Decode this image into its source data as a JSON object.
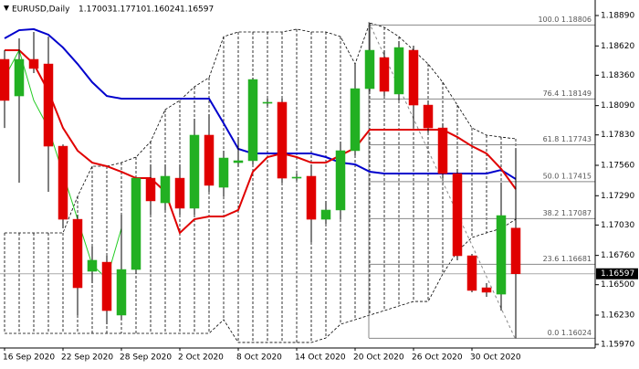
{
  "chart_data": {
    "type": "candlestick",
    "title": "EURUSD,Daily",
    "quote": [
      "1.17003",
      "1.17710",
      "1.16024",
      "1.16597"
    ],
    "categories": [
      "16 Sep 2020",
      null,
      null,
      null,
      "22 Sep 2020",
      null,
      null,
      null,
      "28 Sep 2020",
      null,
      null,
      null,
      "2 Oct 2020",
      null,
      null,
      null,
      "8 Oct 2020",
      null,
      null,
      null,
      "14 Oct 2020",
      null,
      null,
      null,
      "20 Oct 2020",
      null,
      null,
      null,
      "26 Oct 2020",
      null,
      null,
      null,
      "30 Oct 2020",
      null,
      null,
      null
    ],
    "up_color": "#22b022",
    "down_color": "#e00000",
    "open": [
      1.18501,
      1.18176,
      1.18501,
      1.1846,
      1.1773,
      1.17081,
      1.16619,
      1.167,
      1.1623,
      1.16635,
      1.17446,
      1.17227,
      1.17446,
      1.17179,
      1.17828,
      1.17365,
      1.17584,
      1.17601,
      1.18111,
      1.1812,
      1.17446,
      1.17463,
      1.17081,
      1.17163,
      1.1769,
      1.18241,
      1.18517,
      1.18193,
      1.18582,
      1.18095,
      1.17892,
      1.17487,
      1.16757,
      1.16473,
      1.16416,
      1.17003
    ],
    "high": [
      1.18582,
      1.18687,
      1.18744,
      1.18703,
      1.17746,
      1.17122,
      1.16838,
      1.16757,
      1.17122,
      1.17446,
      1.17568,
      1.17568,
      1.17568,
      1.17974,
      1.18014,
      1.1769,
      1.17811,
      1.18339,
      1.18152,
      1.18152,
      1.17487,
      1.17568,
      1.17244,
      1.17771,
      1.1846,
      1.18825,
      1.18582,
      1.18663,
      1.18622,
      1.18136,
      1.17933,
      1.17528,
      1.16773,
      1.16514,
      1.17406,
      1.1771
    ],
    "low": [
      1.17892,
      1.17406,
      1.18379,
      1.17325,
      1.17,
      1.1623,
      1.16514,
      1.16149,
      1.16189,
      1.16595,
      1.17122,
      1.17163,
      1.17122,
      1.17122,
      1.17325,
      1.17284,
      1.17552,
      1.17568,
      1.18087,
      1.17406,
      1.17422,
      1.16879,
      1.17041,
      1.17081,
      1.17649,
      1.18217,
      1.18176,
      1.18136,
      1.17892,
      1.17852,
      1.17446,
      1.16717,
      1.16433,
      1.16392,
      1.1627,
      1.16024
    ],
    "close": [
      1.18136,
      1.18501,
      1.1842,
      1.1773,
      1.17081,
      1.16473,
      1.16717,
      1.1627,
      1.16635,
      1.17446,
      1.17244,
      1.17463,
      1.17179,
      1.17828,
      1.17382,
      1.17625,
      1.17601,
      1.18322,
      1.1812,
      1.17446,
      1.17455,
      1.17081,
      1.17163,
      1.1769,
      1.18241,
      1.18582,
      1.18217,
      1.18606,
      1.18095,
      1.17892,
      1.17487,
      1.16757,
      1.16449,
      1.16433,
      1.17114,
      1.16597
    ],
    "lines": [
      {
        "color": "#0000cc",
        "width": 2,
        "dash": false,
        "values": [
          1.18687,
          1.1876,
          1.18769,
          1.1872,
          1.18606,
          1.1846,
          1.18298,
          1.18176,
          1.18152,
          1.18152,
          1.18152,
          1.18152,
          1.18152,
          1.18152,
          1.18152,
          1.17933,
          1.17706,
          1.17665,
          1.17665,
          1.17665,
          1.17665,
          1.17665,
          1.17633,
          1.17584,
          1.17568,
          1.17503,
          1.17487,
          1.17487,
          1.17487,
          1.17487,
          1.17487,
          1.17487,
          1.17487,
          1.17487,
          1.17519,
          1.17438
        ]
      },
      {
        "color": "#e00000",
        "width": 2,
        "dash": false,
        "values": [
          1.18582,
          1.18582,
          1.1846,
          1.18217,
          1.17892,
          1.1769,
          1.17584,
          1.17552,
          1.17503,
          1.17446,
          1.17446,
          1.17325,
          1.1696,
          1.17081,
          1.17106,
          1.17106,
          1.17163,
          1.17503,
          1.17633,
          1.17665,
          1.17633,
          1.17584,
          1.17584,
          1.17649,
          1.17714,
          1.17876,
          1.17876,
          1.17876,
          1.17876,
          1.17876,
          1.17876,
          1.17811,
          1.1773,
          1.17665,
          1.17528,
          1.17349
        ]
      },
      {
        "color": "#22cc22",
        "width": 1,
        "dash": false,
        "values": [
          1.18339,
          1.18582,
          1.18136,
          1.17892,
          1.17487,
          1.17081,
          1.16676,
          1.16554,
          1.17,
          null,
          null,
          null,
          null,
          null,
          null,
          null,
          null,
          null,
          null,
          null,
          null,
          null,
          null,
          null,
          null,
          null,
          null,
          null,
          null,
          null,
          null,
          null,
          null,
          null,
          null,
          null
        ]
      }
    ],
    "envelope": {
      "color": "#000000",
      "upper": [
        1.1696,
        1.1696,
        1.1696,
        1.1696,
        1.1696,
        1.17284,
        1.17552,
        1.17552,
        1.17584,
        1.17633,
        1.17771,
        1.18055,
        1.18136,
        1.18258,
        1.18339,
        1.18703,
        1.18744,
        1.18744,
        1.18744,
        1.18744,
        1.18769,
        1.18744,
        1.18744,
        1.18703,
        1.1846,
        1.18825,
        1.18785,
        1.18703,
        1.18582,
        1.1846,
        1.18298,
        1.18095,
        1.17892,
        1.17828,
        1.17811,
        1.17795
      ],
      "lower": [
        1.16068,
        1.16068,
        1.16068,
        1.16068,
        1.16068,
        1.16068,
        1.16068,
        1.16068,
        1.16068,
        1.16068,
        1.16068,
        1.16068,
        1.16068,
        1.16068,
        1.16068,
        1.16189,
        1.15987,
        1.15987,
        1.15987,
        1.15987,
        1.15987,
        1.15987,
        1.16027,
        1.16149,
        1.16189,
        1.1623,
        1.1627,
        1.16311,
        1.16351,
        1.16351,
        1.16595,
        1.16797,
        1.16919,
        1.1696,
        1.17,
        1.17081
      ]
    },
    "fibo_levels": [
      {
        "value": 1.18806,
        "label": "100.0 1.18806"
      },
      {
        "value": 1.18149,
        "label": "76.4 1.18149"
      },
      {
        "value": 1.17743,
        "label": "61.8 1.17743"
      },
      {
        "value": 1.17415,
        "label": "50.0 1.17415"
      },
      {
        "value": 1.17087,
        "label": "38.2 1.17087"
      },
      {
        "value": 1.16681,
        "label": "23.6 1.16681"
      },
      {
        "value": 1.16024,
        "label": "0.0 1.16024"
      }
    ],
    "last_price": {
      "value": 1.16597,
      "label": "1.16597"
    },
    "ylim": [
      1.15938,
      1.19028
    ],
    "yticks": [
      {
        "value": 1.1889,
        "label": "1.18890"
      },
      {
        "value": 1.1862,
        "label": "1.18620"
      },
      {
        "value": 1.1836,
        "label": "1.18360"
      },
      {
        "value": 1.1809,
        "label": "1.18090"
      },
      {
        "value": 1.1783,
        "label": "1.17830"
      },
      {
        "value": 1.1756,
        "label": "1.17560"
      },
      {
        "value": 1.1729,
        "label": "1.17290"
      },
      {
        "value": 1.1703,
        "label": "1.17030"
      },
      {
        "value": 1.1676,
        "label": "1.16760"
      },
      {
        "value": 1.165,
        "label": "1.16500"
      },
      {
        "value": 1.1623,
        "label": "1.16230"
      },
      {
        "value": 1.1597,
        "label": "1.15970"
      }
    ]
  }
}
